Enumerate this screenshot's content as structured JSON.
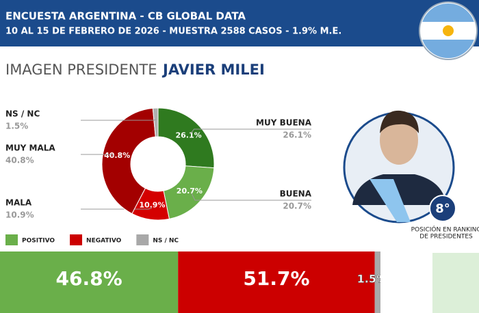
{
  "header": {
    "title": "ENCUESTA ARGENTINA - CB GLOBAL DATA",
    "subtitle": "10 AL 15 DE FEBRERO DE 2026 - MUESTRA 2588 CASOS - 1.9% M.E.",
    "section": "IMAGEN PRESIDENTE",
    "name": "JAVIER MILEI"
  },
  "president": {
    "rank": "8°",
    "rank_caption": [
      "POSICIÓN EN RANKING",
      "DE PRESIDENTES"
    ]
  },
  "chart_data": [
    {
      "type": "pie",
      "categories": [
        "MUY BUENA",
        "BUENA",
        "MALA",
        "MUY MALA",
        "NS / NC"
      ],
      "values": [
        26.1,
        20.7,
        10.9,
        40.8,
        1.5
      ],
      "value_labels": [
        "26.1%",
        "20.7%",
        "10.9%",
        "40.8%",
        "1.5%"
      ],
      "colors": [
        "#2f7a1f",
        "#6aaf4a",
        "#d40000",
        "#a30000",
        "#b0b0b0"
      ]
    },
    {
      "type": "stacked-bar",
      "series": [
        {
          "name": "POSITIVO",
          "color": "#6aaf4a",
          "values": [
            46.8
          ],
          "value_labels": [
            "46.8%"
          ]
        },
        {
          "name": "NEGATIVO",
          "color": "#cc0000",
          "values": [
            51.7
          ],
          "value_labels": [
            "51.7%"
          ]
        },
        {
          "name": "NS / NC",
          "color": "#a8a8a8",
          "values": [
            1.5
          ],
          "value_labels": [
            "1.5%"
          ]
        }
      ],
      "xlim": [
        0,
        100
      ]
    }
  ]
}
